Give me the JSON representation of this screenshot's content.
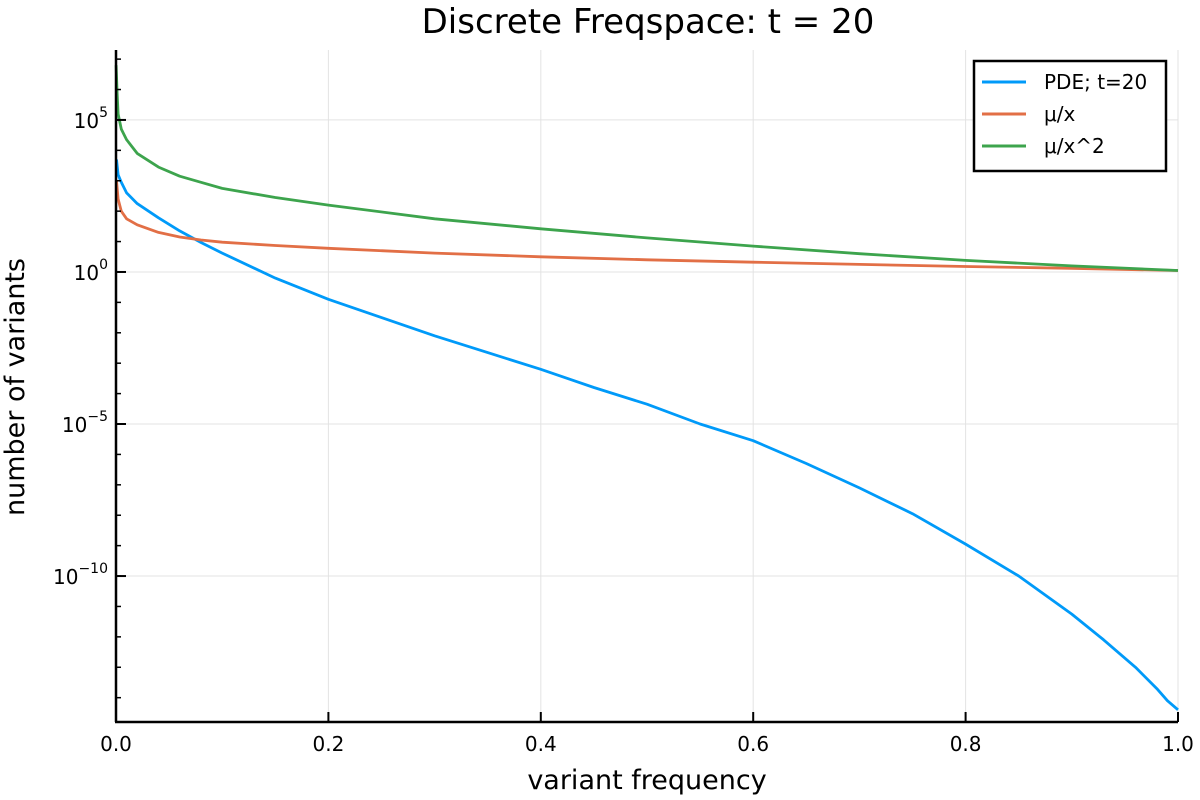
{
  "chart_data": {
    "type": "line",
    "title": "Discrete Freqspace: t = 20",
    "xlabel": "variant frequency",
    "ylabel": "number of variants",
    "y_scale": "log10",
    "xlim": [
      0.0,
      1.0
    ],
    "ylim_log10": [
      -14.8,
      7.3
    ],
    "x_ticks": [
      {
        "value": 0.0,
        "label": "0.0"
      },
      {
        "value": 0.2,
        "label": "0.2"
      },
      {
        "value": 0.4,
        "label": "0.4"
      },
      {
        "value": 0.6,
        "label": "0.6"
      },
      {
        "value": 0.8,
        "label": "0.8"
      },
      {
        "value": 1.0,
        "label": "1.0"
      }
    ],
    "y_ticks": [
      {
        "exp": 5,
        "base": "10",
        "sup": "5"
      },
      {
        "exp": 0,
        "base": "10",
        "sup": "0"
      },
      {
        "exp": -5,
        "base": "10",
        "sup": "−5"
      },
      {
        "exp": -10,
        "base": "10",
        "sup": "−10"
      }
    ],
    "grid": true,
    "legend_position": "top-right",
    "series": [
      {
        "name": "PDE; t=20",
        "color": "#009af9",
        "x": [
          0.0005,
          0.002,
          0.005,
          0.01,
          0.02,
          0.04,
          0.06,
          0.08,
          0.1,
          0.15,
          0.2,
          0.25,
          0.3,
          0.35,
          0.4,
          0.45,
          0.5,
          0.55,
          0.6,
          0.65,
          0.7,
          0.75,
          0.8,
          0.85,
          0.9,
          0.93,
          0.96,
          0.98,
          0.99,
          1.0
        ],
        "log10_y": [
          3.7,
          3.2,
          2.95,
          2.6,
          2.25,
          1.78,
          1.35,
          0.97,
          0.62,
          -0.2,
          -0.9,
          -1.5,
          -2.1,
          -2.65,
          -3.2,
          -3.8,
          -4.35,
          -5.0,
          -5.55,
          -6.3,
          -7.1,
          -7.95,
          -8.95,
          -10.0,
          -11.25,
          -12.1,
          -13.0,
          -13.7,
          -14.1,
          -14.4
        ]
      },
      {
        "name": "μ/x",
        "color": "#e26f46",
        "x": [
          0.0005,
          0.002,
          0.005,
          0.01,
          0.02,
          0.04,
          0.06,
          0.08,
          0.1,
          0.15,
          0.2,
          0.3,
          0.4,
          0.5,
          0.6,
          0.7,
          0.8,
          0.9,
          1.0
        ],
        "log10_y": [
          3.0,
          2.4,
          2.0,
          1.75,
          1.55,
          1.3,
          1.15,
          1.05,
          0.98,
          0.87,
          0.78,
          0.62,
          0.5,
          0.4,
          0.32,
          0.25,
          0.18,
          0.12,
          0.05
        ]
      },
      {
        "name": "μ/x^2",
        "color": "#3da44d",
        "x": [
          0.0001,
          0.001,
          0.002,
          0.005,
          0.01,
          0.02,
          0.04,
          0.06,
          0.08,
          0.1,
          0.15,
          0.2,
          0.3,
          0.4,
          0.5,
          0.6,
          0.7,
          0.8,
          0.9,
          1.0
        ],
        "log10_y": [
          6.8,
          5.9,
          5.2,
          4.7,
          4.35,
          3.9,
          3.45,
          3.15,
          2.95,
          2.75,
          2.45,
          2.2,
          1.75,
          1.42,
          1.12,
          0.85,
          0.6,
          0.38,
          0.2,
          0.05
        ]
      }
    ]
  }
}
